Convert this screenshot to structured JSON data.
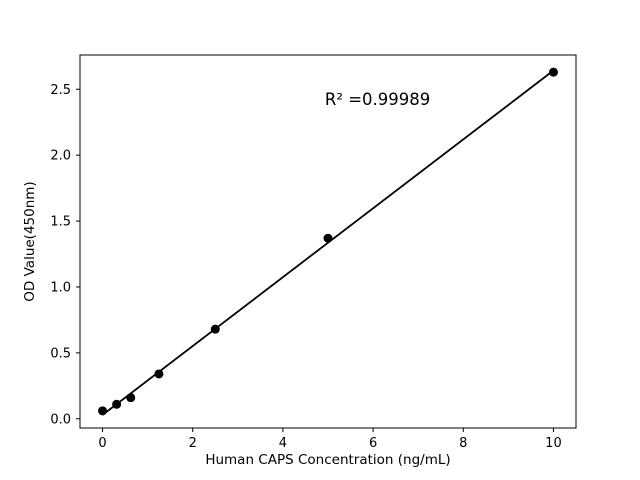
{
  "figure": {
    "background": "#ffffff",
    "foreground": "#000000"
  },
  "chart_data": {
    "type": "scatter",
    "title": "",
    "xlabel": "Human CAPS Concentration (ng/mL)",
    "ylabel": "OD Value(450nm)",
    "x": [
      0,
      0.3125,
      0.625,
      1.25,
      2.5,
      5,
      10
    ],
    "y": [
      0.06,
      0.11,
      0.16,
      0.34,
      0.68,
      1.37,
      2.63
    ],
    "fit_line": {
      "type": "linear-regression",
      "x_start": 0,
      "x_end": 10
    },
    "xlim": [
      -0.5,
      10.5
    ],
    "ylim": [
      -0.07,
      2.76
    ],
    "x_ticks": [
      0,
      2,
      4,
      6,
      8,
      10
    ],
    "x_tick_labels": [
      "0",
      "2",
      "4",
      "6",
      "8",
      "10"
    ],
    "y_ticks": [
      0,
      0.5,
      1,
      1.5,
      2,
      2.5
    ],
    "y_tick_labels": [
      "0.0",
      "0.5",
      "1.0",
      "1.5",
      "2.0",
      "2.5"
    ],
    "annotation": {
      "text": "R² =0.99989",
      "x": 6.1,
      "y": 2.38
    },
    "grid": false,
    "legend": null,
    "marker_color": "#000000",
    "line_color": "#000000",
    "axis_color": "#000000"
  }
}
